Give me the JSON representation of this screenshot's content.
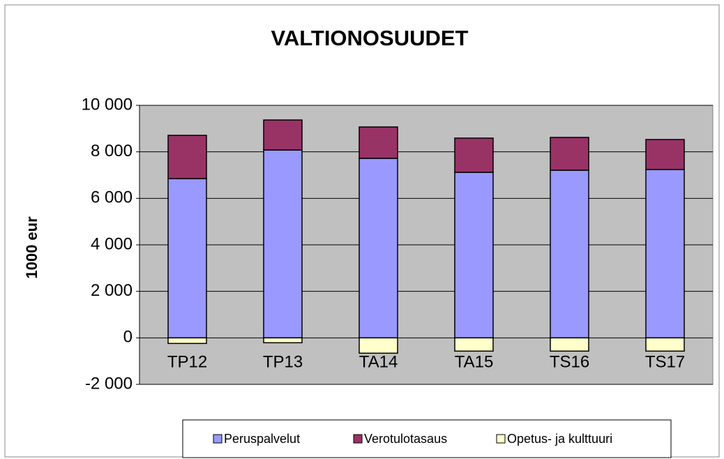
{
  "chart_data": {
    "type": "stacked_bar",
    "title": "VALTIONOSUUDET",
    "y_label": "1000 eur",
    "categories": [
      "TP12",
      "TP13",
      "TA14",
      "TA15",
      "TS16",
      "TS17"
    ],
    "series": [
      {
        "name": "Peruspalvelut",
        "color": "#9999ff",
        "values": [
          6850,
          8080,
          7720,
          7120,
          7210,
          7240
        ]
      },
      {
        "name": "Verotulotasaus",
        "color": "#993366",
        "values": [
          1860,
          1290,
          1350,
          1470,
          1410,
          1290
        ]
      },
      {
        "name": "Opetus- ja kulttuuri",
        "color": "#ffffcc",
        "values": [
          -240,
          -210,
          -660,
          -570,
          -570,
          -570
        ]
      }
    ],
    "ylim": [
      -2000,
      10000
    ],
    "yticks": [
      {
        "value": -2000,
        "label": "-2 000"
      },
      0,
      {
        "value": 2000,
        "label": "2 000"
      },
      {
        "value": 4000,
        "label": "4 000"
      },
      {
        "value": 6000,
        "label": "6 000"
      },
      {
        "value": 8000,
        "label": "8 000"
      },
      {
        "value": 10000,
        "label": "10 000"
      }
    ],
    "grid": true,
    "legend": "bottom"
  }
}
